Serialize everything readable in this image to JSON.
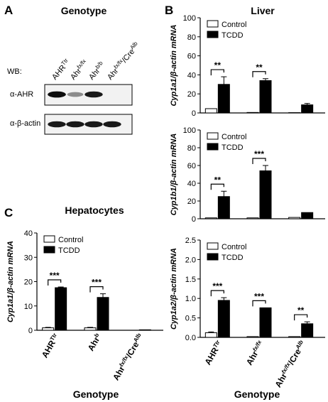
{
  "panel_a": {
    "letter": "A",
    "title": "Genotype",
    "wb_label": "WB:",
    "lanes": [
      {
        "base": "AHR",
        "sup": "Ttr"
      },
      {
        "base": "Ahr",
        "sup": "fx/fx"
      },
      {
        "base": "Ahr",
        "sup": "b/b"
      },
      {
        "base": "Ahr",
        "sup": "fx/fx",
        "mid": "/Cre",
        "sup2": "Alb"
      }
    ],
    "blots": [
      {
        "label": "α-AHR",
        "band_intensity": [
          0.95,
          0.45,
          0.9,
          0.0
        ]
      },
      {
        "label": "α-β-actin",
        "band_intensity": [
          0.9,
          0.9,
          0.9,
          0.9
        ]
      }
    ]
  },
  "panel_b": {
    "letter": "B",
    "title": "Liver",
    "x_title": "Genotype",
    "x_ticks": [
      {
        "base": "AHR",
        "sup": "Ttr"
      },
      {
        "base": "Ahr",
        "sup": "fx/fx"
      },
      {
        "base": "Ahr",
        "sup": "fx/fx",
        "mid": "/Cre",
        "sup2": "Alb"
      }
    ]
  },
  "panel_c": {
    "letter": "C",
    "title": "Hepatocytes",
    "x_title": "Genotype",
    "x_ticks": [
      {
        "base": "AHR",
        "sup": "Ttr"
      },
      {
        "base": "Ahr",
        "sup": "b"
      },
      {
        "base": "Ahr",
        "sup": "fx/fx",
        "mid": "/Cre",
        "sup2": "Alb"
      }
    ]
  },
  "legend": {
    "control": "Control",
    "tcdd": "TCDD"
  },
  "colors": {
    "control": "#ffffff",
    "tcdd": "#000000"
  },
  "chart_data": [
    {
      "type": "bar",
      "panel": "B",
      "ylabel": "Cyp1a1/β-actin mRNA",
      "ylim": [
        0,
        100
      ],
      "yticks": [
        0,
        20,
        40,
        60,
        80,
        100
      ],
      "categories": [
        "AHR^Ttr",
        "Ahr^fx/fx",
        "Ahr^fx/fx/Cre^Alb"
      ],
      "series": [
        {
          "name": "Control",
          "values": [
            4.5,
            0.5,
            0.3
          ],
          "errors": [
            0,
            0,
            0
          ]
        },
        {
          "name": "TCDD",
          "values": [
            30,
            34,
            8.5
          ],
          "errors": [
            8,
            2,
            1.5
          ]
        }
      ],
      "significance": [
        "**",
        "**",
        ""
      ],
      "legend_position": "top-left"
    },
    {
      "type": "bar",
      "panel": "B",
      "ylabel": "Cyp1b1/β-actin mRNA",
      "ylim": [
        0,
        100
      ],
      "yticks": [
        0,
        20,
        40,
        60,
        80,
        100
      ],
      "categories": [
        "AHR^Ttr",
        "Ahr^fx/fx",
        "Ahr^fx/fx/Cre^Alb"
      ],
      "series": [
        {
          "name": "Control",
          "values": [
            1,
            1,
            1.5
          ],
          "errors": [
            0,
            0,
            0
          ]
        },
        {
          "name": "TCDD",
          "values": [
            25,
            54,
            7
          ],
          "errors": [
            6,
            6,
            0
          ]
        }
      ],
      "significance": [
        "**",
        "***",
        ""
      ],
      "legend_position": "top-left"
    },
    {
      "type": "bar",
      "panel": "B",
      "ylabel": "Cyp1a2/β-actin mRNA",
      "ylim": [
        0,
        2.5
      ],
      "yticks": [
        0.0,
        0.5,
        1.0,
        1.5,
        2.0,
        2.5
      ],
      "categories": [
        "AHR^Ttr",
        "Ahr^fx/fx",
        "Ahr^fx/fx/Cre^Alb"
      ],
      "series": [
        {
          "name": "Control",
          "values": [
            0.12,
            0.02,
            0.02
          ],
          "errors": [
            0.02,
            0,
            0
          ]
        },
        {
          "name": "TCDD",
          "values": [
            0.95,
            0.76,
            0.35
          ],
          "errors": [
            0.07,
            0,
            0.05
          ]
        }
      ],
      "significance": [
        "***",
        "***",
        "**"
      ],
      "legend_position": "top-left"
    },
    {
      "type": "bar",
      "panel": "C",
      "ylabel": "Cyp1a1/β-actin mRNA",
      "ylim": [
        0,
        40
      ],
      "yticks": [
        0,
        10,
        20,
        30,
        40
      ],
      "categories": [
        "AHR^Ttr",
        "Ahr^b",
        "Ahr^fx/fx/Cre^Alb"
      ],
      "series": [
        {
          "name": "Control",
          "values": [
            1,
            1,
            0
          ],
          "errors": [
            0.2,
            0.2,
            0
          ]
        },
        {
          "name": "TCDD",
          "values": [
            17.5,
            13.5,
            0.2
          ],
          "errors": [
            0.3,
            1.5,
            0
          ]
        }
      ],
      "significance": [
        "***",
        "***",
        ""
      ],
      "legend_position": "top-left"
    }
  ]
}
